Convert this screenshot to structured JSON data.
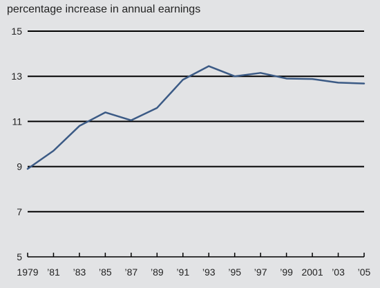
{
  "chart_data": {
    "type": "line",
    "title": "",
    "xlabel": "",
    "ylabel": "percentage increase in annual earnings",
    "ylim": [
      5,
      15
    ],
    "y_ticks": [
      5,
      7,
      9,
      11,
      13,
      15
    ],
    "x_ticks": [
      {
        "year": 1979,
        "label": "1979"
      },
      {
        "year": 1981,
        "label": "’81"
      },
      {
        "year": 1983,
        "label": "’83"
      },
      {
        "year": 1985,
        "label": "’85"
      },
      {
        "year": 1987,
        "label": "’87"
      },
      {
        "year": 1989,
        "label": "’89"
      },
      {
        "year": 1991,
        "label": "’91"
      },
      {
        "year": 1993,
        "label": "’93"
      },
      {
        "year": 1995,
        "label": "’95"
      },
      {
        "year": 1997,
        "label": "’97"
      },
      {
        "year": 1999,
        "label": "’99"
      },
      {
        "year": 2001,
        "label": "2001"
      },
      {
        "year": 2003,
        "label": "’03"
      },
      {
        "year": 2005,
        "label": "’05"
      }
    ],
    "grid": "horizontal",
    "line_color": "#3b5a85",
    "series": [
      {
        "x": [
          1979,
          1981,
          1983,
          1985,
          1987,
          1989,
          1991,
          1993,
          1995,
          1997,
          1999,
          2001,
          2003,
          2005
        ],
        "values": [
          8.9,
          9.7,
          10.8,
          11.4,
          11.05,
          11.6,
          12.85,
          13.45,
          13.0,
          13.15,
          12.9,
          12.88,
          12.72,
          12.68
        ]
      }
    ]
  }
}
